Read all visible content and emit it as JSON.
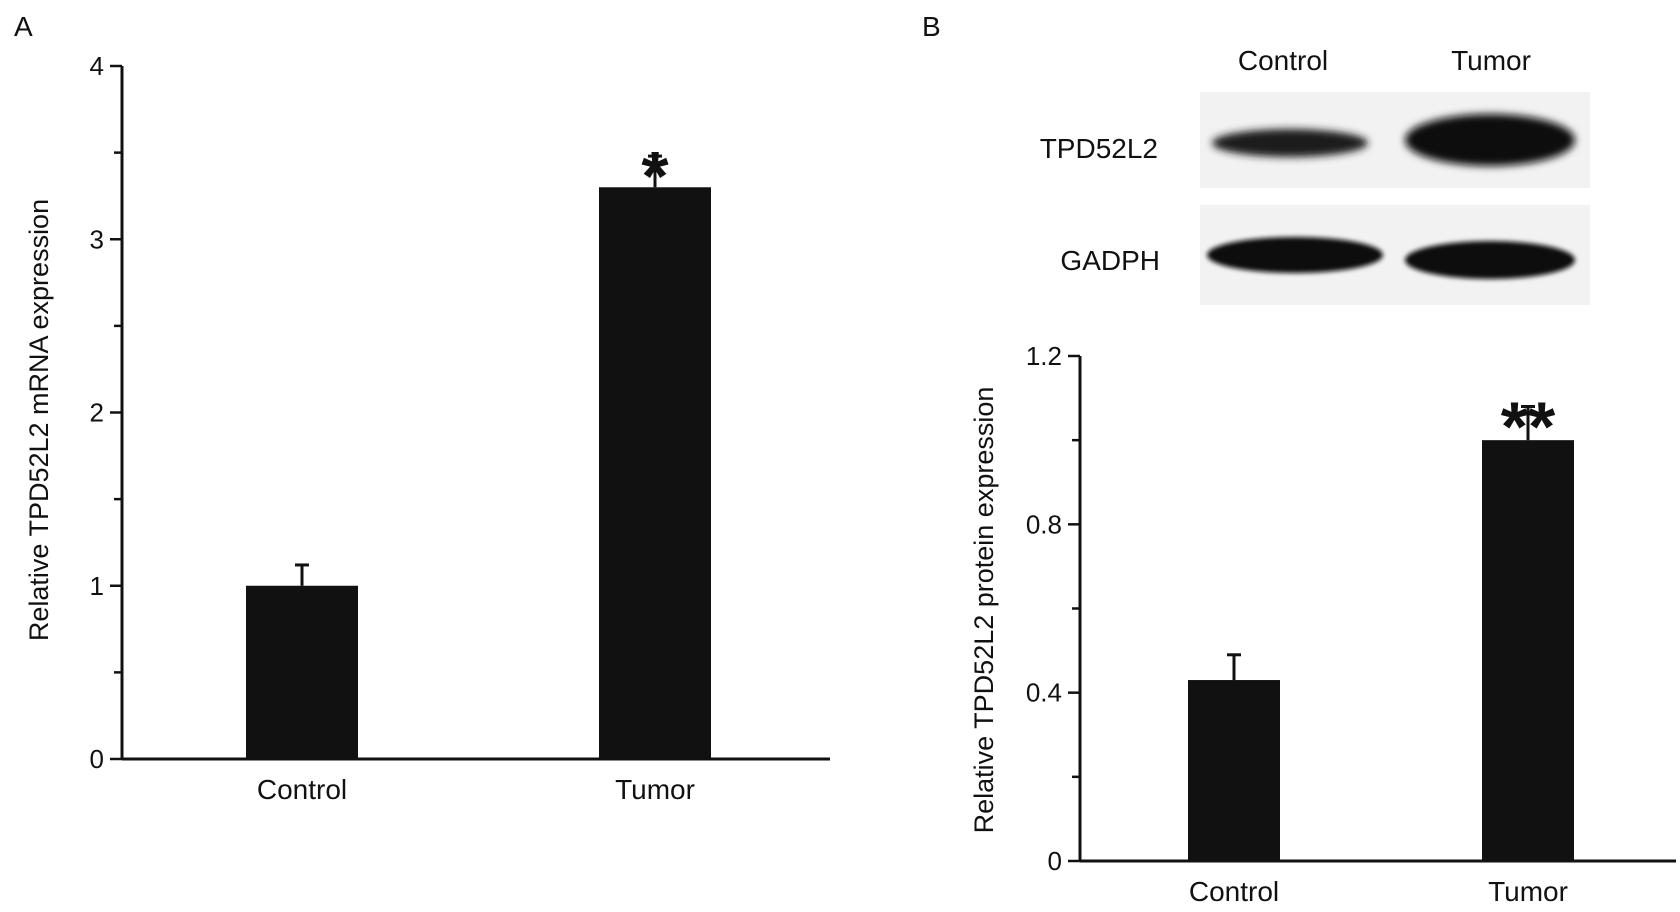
{
  "chart_data": [
    {
      "panel": "A",
      "type": "bar",
      "categories": [
        "Control",
        "Tumor"
      ],
      "values": [
        1.0,
        3.3
      ],
      "error": [
        0.12,
        0.18
      ],
      "significance": [
        "",
        "*"
      ],
      "ylabel": "Relative TPD52L2 mRNA expression",
      "xlabel": "",
      "ylim": [
        0,
        4
      ],
      "yticks": [
        "0",
        "1",
        "2",
        "3",
        "4"
      ],
      "bar_color": "#111111",
      "grid": false
    },
    {
      "panel": "B",
      "type": "bar",
      "categories": [
        "Control",
        "Tumor"
      ],
      "values": [
        0.43,
        1.0
      ],
      "error": [
        0.06,
        0.08
      ],
      "significance": [
        "",
        "**"
      ],
      "ylabel": "Relative TPD52L2 protein expression",
      "xlabel": "",
      "ylim": [
        0,
        1.2
      ],
      "yticks": [
        "0",
        "0.4",
        "0.8",
        "1.2"
      ],
      "bar_color": "#111111",
      "grid": false,
      "blot": {
        "lanes": [
          "Control",
          "Tumor"
        ],
        "rows": [
          "TPD52L2",
          "GADPH"
        ]
      }
    }
  ]
}
